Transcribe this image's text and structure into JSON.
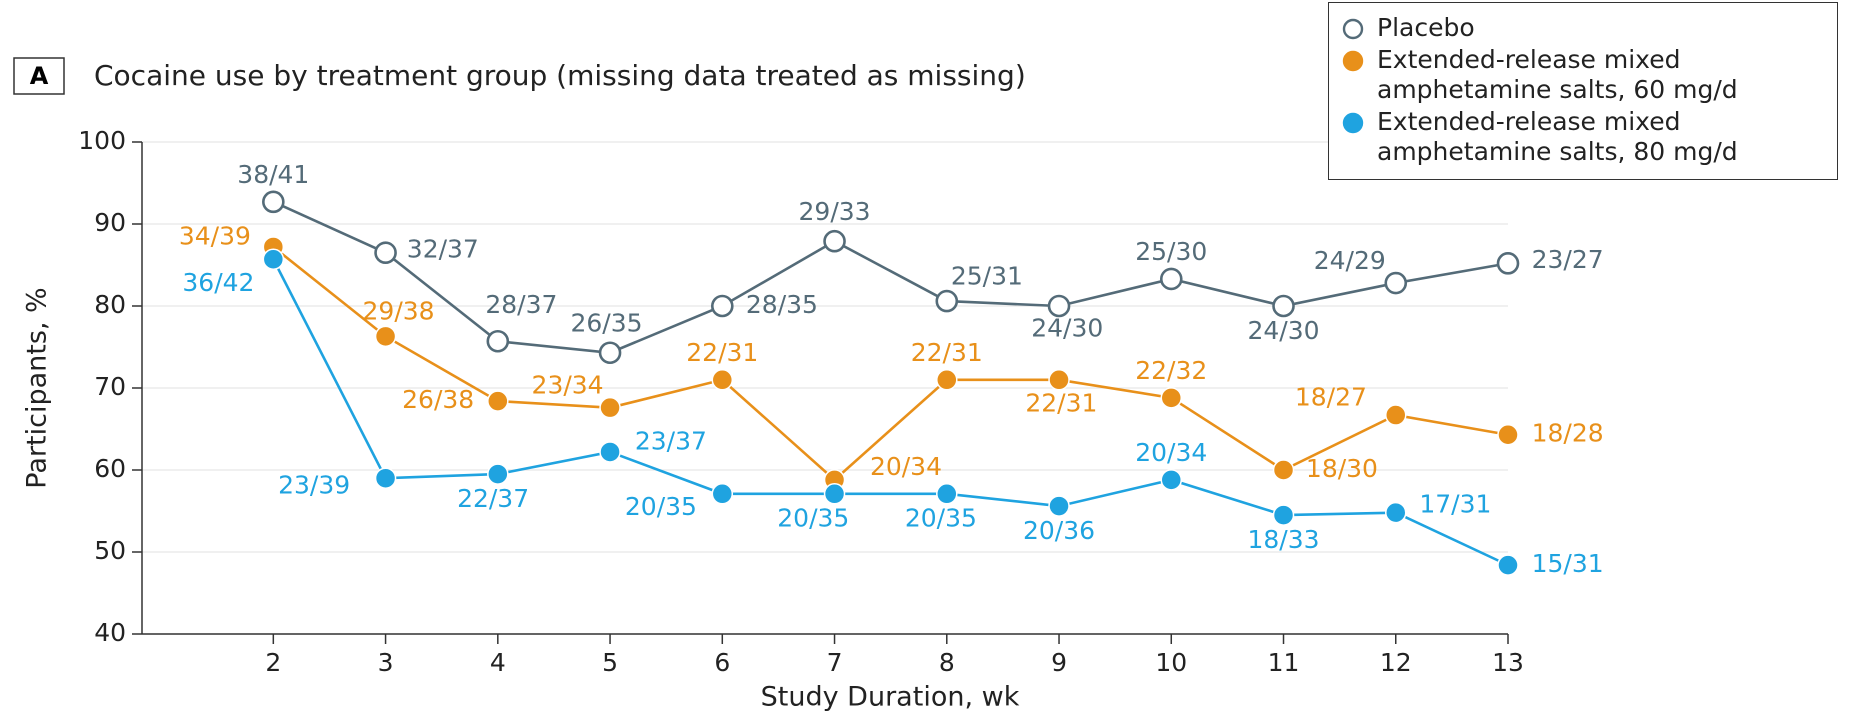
{
  "chart_data": {
    "type": "line",
    "panel_label": "A",
    "title": "Cocaine use by treatment group (missing data treated as missing)",
    "x_label": "Study Duration, wk",
    "y_label": "Participants, %",
    "x": [
      2,
      3,
      4,
      5,
      6,
      7,
      8,
      9,
      10,
      11,
      12,
      13
    ],
    "xlim": [
      0.83,
      13
    ],
    "xticks": [
      2,
      3,
      4,
      5,
      6,
      7,
      8,
      9,
      10,
      11,
      12,
      13
    ],
    "ylim": [
      40,
      100
    ],
    "yticks": [
      40,
      50,
      60,
      70,
      80,
      90,
      100
    ],
    "grid": true,
    "legend": "upper right",
    "series": [
      {
        "name": "Placebo",
        "color": "#546b78",
        "marker": "hollow",
        "values": [
          92.7,
          86.5,
          75.7,
          74.3,
          80.0,
          87.9,
          80.6,
          80.0,
          83.3,
          80.0,
          82.8,
          85.2
        ],
        "value_labels": [
          "38/41",
          "32/37",
          "28/37",
          "26/35",
          "28/35",
          "29/33",
          "25/31",
          "24/30",
          "25/30",
          "24/30",
          "24/29",
          "23/27"
        ]
      },
      {
        "name": "Extended-release mixed amphetamine salts, 60 mg/d",
        "color": "#e8901a",
        "marker": "filled",
        "values": [
          87.2,
          76.3,
          68.4,
          67.6,
          71.0,
          58.8,
          71.0,
          71.0,
          68.8,
          60.0,
          66.7,
          64.3
        ],
        "value_labels": [
          "34/39",
          "29/38",
          "26/38",
          "23/34",
          "22/31",
          "20/34",
          "22/31",
          "22/31",
          "22/32",
          "18/30",
          "18/27",
          "18/28"
        ]
      },
      {
        "name": "Extended-release mixed amphetamine salts, 80 mg/d",
        "color": "#1fa3e0",
        "marker": "filled",
        "values": [
          85.7,
          59.0,
          59.5,
          62.2,
          57.1,
          57.1,
          57.1,
          55.6,
          58.8,
          54.5,
          54.8,
          48.4
        ],
        "value_labels": [
          "36/42",
          "23/39",
          "22/37",
          "23/37",
          "20/35",
          "20/35",
          "20/35",
          "20/36",
          "20/34",
          "18/33",
          "17/31",
          "15/31"
        ]
      }
    ]
  }
}
